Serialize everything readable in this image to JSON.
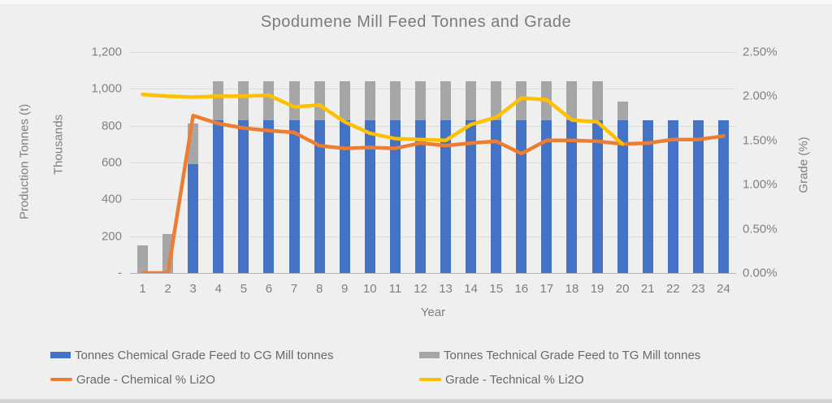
{
  "title": "Spodumene Mill Feed Tonnes and Grade",
  "axes": {
    "left_title": "Production Tonnes (t)",
    "left_units": "Thousands",
    "left_ticks": [
      "1,200",
      "1,000",
      "800",
      "600",
      "400",
      "200",
      "-"
    ],
    "right_title": "Grade (%)",
    "right_ticks": [
      "2.50%",
      "2.00%",
      "1.50%",
      "1.00%",
      "0.50%",
      "0.00%"
    ],
    "x_title": "Year"
  },
  "legend": [
    {
      "label": "Tonnes Chemical Grade Feed to CG Mill tonnes",
      "marker": "bar",
      "color": "#4472C4",
      "row": 0,
      "col": 0
    },
    {
      "label": "Tonnes Technical Grade Feed to TG Mill tonnes",
      "marker": "bar",
      "color": "#A6A6A6",
      "row": 0,
      "col": 1
    },
    {
      "label": "Grade - Chemical % Li2O",
      "marker": "line",
      "color": "#ED7D31",
      "row": 1,
      "col": 0
    },
    {
      "label": "Grade - Technical  % Li2O",
      "marker": "line",
      "color": "#FFC000",
      "row": 1,
      "col": 1
    }
  ],
  "chart_data": {
    "type": "combo",
    "title": "Spodumene Mill Feed Tonnes and Grade",
    "xlabel": "Year",
    "x": [
      1,
      2,
      3,
      4,
      5,
      6,
      7,
      8,
      9,
      10,
      11,
      12,
      13,
      14,
      15,
      16,
      17,
      18,
      19,
      20,
      21,
      22,
      23,
      24
    ],
    "left_axis": {
      "label": "Production Tonnes (t), Thousands",
      "min": 0,
      "max": 1200,
      "step": 200
    },
    "right_axis": {
      "label": "Grade (%)",
      "min": 0,
      "max": 2.5,
      "step": 0.5
    },
    "grid": true,
    "legend_position": "bottom",
    "series": [
      {
        "name": "Tonnes Chemical Grade Feed to CG Mill tonnes",
        "type": "bar",
        "stack": true,
        "axis": "left",
        "color": "#4472C4",
        "values": [
          0,
          0,
          590,
          830,
          830,
          830,
          830,
          830,
          830,
          830,
          830,
          830,
          830,
          830,
          830,
          830,
          830,
          830,
          830,
          830,
          830,
          830,
          830,
          830
        ]
      },
      {
        "name": "Tonnes Technical Grade Feed to TG Mill tonnes",
        "type": "bar",
        "stack": true,
        "axis": "left",
        "color": "#A6A6A6",
        "values": [
          150,
          210,
          220,
          210,
          210,
          210,
          210,
          210,
          210,
          210,
          210,
          210,
          210,
          210,
          210,
          210,
          210,
          210,
          210,
          100,
          0,
          0,
          0,
          0
        ]
      },
      {
        "name": "Grade - Chemical % Li2O",
        "type": "line",
        "axis": "right",
        "color": "#ED7D31",
        "values": [
          0,
          0,
          1.78,
          1.69,
          1.64,
          1.61,
          1.59,
          1.44,
          1.41,
          1.42,
          1.41,
          1.47,
          1.44,
          1.47,
          1.49,
          1.35,
          1.5,
          1.5,
          1.49,
          1.46,
          1.47,
          1.51,
          1.51,
          1.55
        ]
      },
      {
        "name": "Grade - Technical  % Li2O",
        "type": "line",
        "axis": "right",
        "color": "#FFC000",
        "values": [
          2.02,
          2.0,
          1.99,
          2.0,
          2.0,
          2.01,
          1.88,
          1.9,
          1.71,
          1.58,
          1.52,
          1.51,
          1.5,
          1.68,
          1.76,
          1.98,
          1.96,
          1.73,
          1.71,
          1.46,
          null,
          null,
          null,
          null
        ]
      }
    ]
  }
}
